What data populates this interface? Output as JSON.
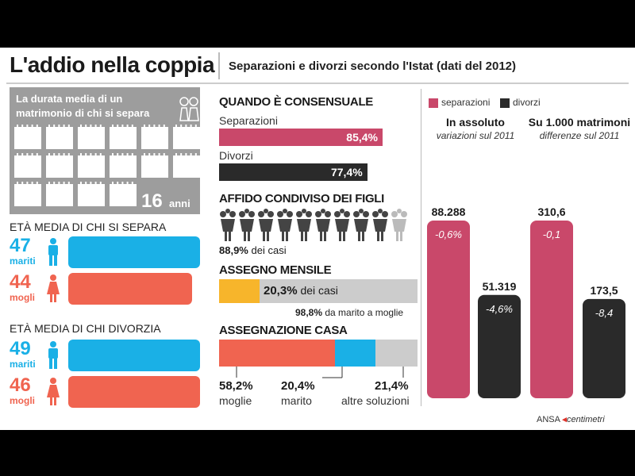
{
  "title": "L'addio nella coppia",
  "subtitle": "Separazioni e divorzi secondo l'Istat (dati del 2012)",
  "durata": {
    "label": "La durata media di un matrimonio di chi si separa",
    "value": "16",
    "unit": "anni",
    "icons": "calendar-icon"
  },
  "eta_separa": {
    "heading": "ETÀ MEDIA DI CHI SI SEPARA",
    "mariti": {
      "value": "47",
      "label": "mariti"
    },
    "mogli": {
      "value": "44",
      "label": "mogli"
    }
  },
  "eta_divorzia": {
    "heading": "ETÀ MEDIA DI CHI DIVORZIA",
    "mariti": {
      "value": "49",
      "label": "mariti"
    },
    "mogli": {
      "value": "46",
      "label": "mogli"
    }
  },
  "consensuale": {
    "heading": "QUANDO È CONSENSUALE",
    "separazioni": {
      "label": "Separazioni",
      "value": 85.4,
      "text": "85,4%"
    },
    "divorzi": {
      "label": "Divorzi",
      "value": 77.4,
      "text": "77,4%"
    }
  },
  "affido": {
    "heading": "AFFIDO CONDIVISO DEI FIGLI",
    "value": 88.9,
    "pct_text": "88,9%",
    "suffix": "dei casi",
    "icons_total": 10
  },
  "assegno": {
    "heading": "ASSEGNO MENSILE",
    "value": 20.3,
    "pct_text": "20,3%",
    "suffix": "dei casi",
    "note_pct": "98,8%",
    "note_text": "da marito a moglie"
  },
  "casa": {
    "heading": "ASSEGNAZIONE CASA",
    "segments": [
      {
        "value": 58.2,
        "pct": "58,2%",
        "label": "moglie",
        "color": "#f06450"
      },
      {
        "value": 20.4,
        "pct": "20,4%",
        "label": "marito",
        "color": "#1ab0e6"
      },
      {
        "value": 21.4,
        "pct": "21,4%",
        "label": "altre soluzioni",
        "color": "#cccccc"
      }
    ]
  },
  "colors": {
    "separazioni": "#c9486a",
    "divorzi": "#2a2a2a",
    "accent_blue": "#1ab0e6",
    "accent_red": "#f06450",
    "assegno": "#f7b52b",
    "grey": "#cccccc"
  },
  "chart_data": {
    "type": "bar",
    "legend": [
      {
        "name": "separazioni",
        "color": "#c9486a"
      },
      {
        "name": "divorzi",
        "color": "#2a2a2a"
      }
    ],
    "panels": [
      {
        "title": "In assoluto",
        "subtitle": "variazioni sul 2011",
        "series": [
          {
            "name": "separazioni",
            "value": 88288,
            "label": "88.288",
            "change": "-0,6%"
          },
          {
            "name": "divorzi",
            "value": 51319,
            "label": "51.319",
            "change": "-4,6%"
          }
        ]
      },
      {
        "title": "Su 1.000 matrimoni",
        "subtitle": "differenze sul 2011",
        "series": [
          {
            "name": "separazioni",
            "value": 310.6,
            "label": "310,6",
            "change": "-0,1"
          },
          {
            "name": "divorzi",
            "value": 173.5,
            "label": "173,5",
            "change": "-8,4"
          }
        ]
      }
    ]
  },
  "credit": {
    "agency": "ANSA",
    "brand": "centimetri"
  }
}
